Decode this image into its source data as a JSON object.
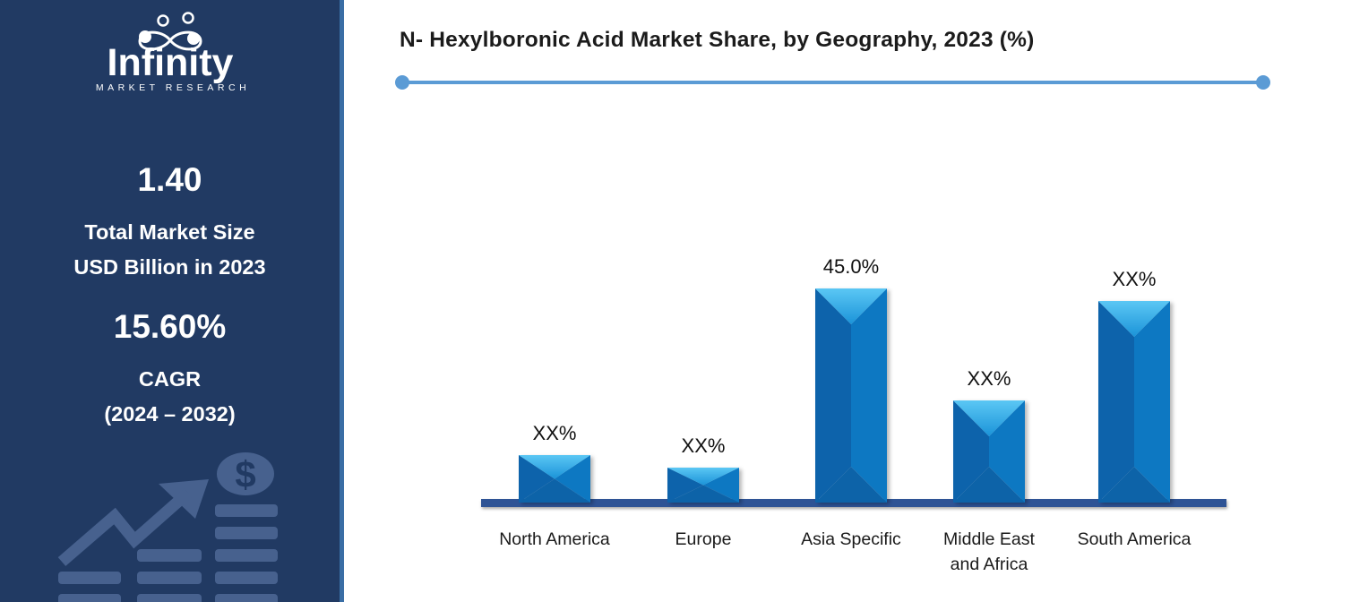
{
  "sidebar": {
    "logo": {
      "brand": "Infinity",
      "tagline": "MARKET RESEARCH"
    },
    "stats": [
      {
        "value": "1.40",
        "label_lines": [
          "Total Market Size",
          "USD Billion in 2023"
        ]
      },
      {
        "value": "15.60%",
        "label_lines": [
          "CAGR",
          "(2024 – 2032)"
        ]
      }
    ],
    "decorative_icon": "growth-arrow-coin-stacks"
  },
  "header": {
    "title": "N- Hexylboronic Acid Market Share, by Geography, 2023 (%)"
  },
  "chart_data": {
    "type": "bar",
    "title": "N- Hexylboronic Acid Market Share, by Geography, 2023 (%)",
    "categories": [
      "North America",
      "Europe",
      "Asia Specific",
      "Middle East and Africa",
      "South America"
    ],
    "category_lines": [
      [
        "North America"
      ],
      [
        "Europe"
      ],
      [
        "Asia Specific"
      ],
      [
        "Middle East",
        "and Africa"
      ],
      [
        "South America"
      ]
    ],
    "data_labels": [
      "XX%",
      "XX%",
      "45.0%",
      "XX%",
      "XX%"
    ],
    "values": [
      10,
      7.3,
      45.0,
      21.5,
      42.5
    ],
    "value_note": "values other than Asia Specific are masked as XX% on the chart; numbers estimated from bar heights",
    "xlabel": "",
    "ylabel": "",
    "ylim": [
      0,
      50
    ],
    "grid": false,
    "legend": false,
    "data_label_position": "above-bar"
  },
  "colors": {
    "sidebar_bg": "#213A63",
    "sidebar_edge": "#3A6EA5",
    "accent_line": "#5B9BD5",
    "axis": "#2E5395",
    "title_text": "#1B1B1B",
    "label_text": "#1A1A1A",
    "decorative": "#47618E",
    "bar_top_light": "#5BC7F4",
    "bar_top_mid": "#1B93D8",
    "bar_left": "#0C64AB",
    "bar_right": "#0F78C2",
    "bar_bottom": "#0B63A8"
  }
}
